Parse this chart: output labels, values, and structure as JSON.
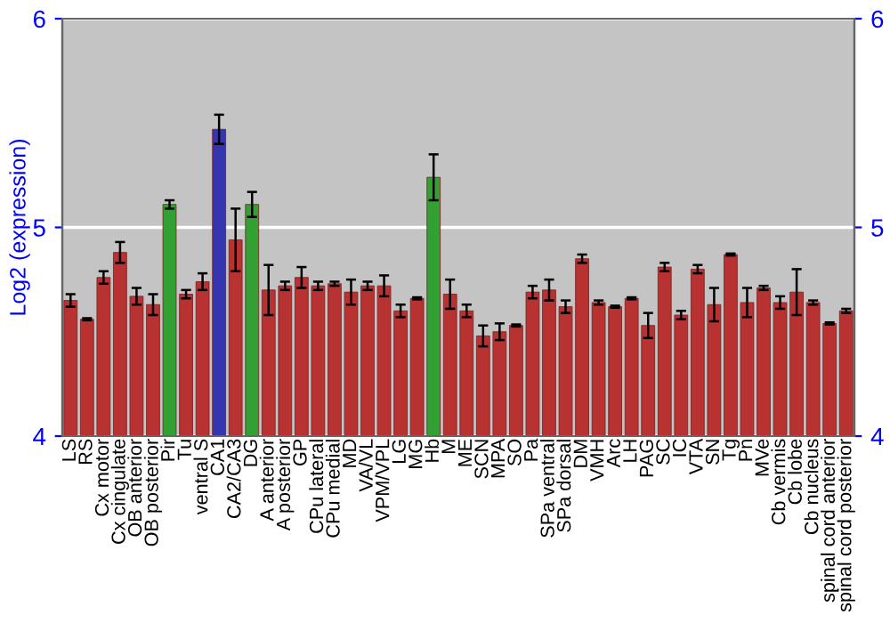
{
  "chart_data": {
    "type": "bar",
    "ylabel": "Log2 (expression)",
    "categories": [
      "LS",
      "RS",
      "Cx motor",
      "Cx cingulate",
      "OB anterior",
      "OB posterior",
      "Pir",
      "Tu",
      "ventral S",
      "CA1",
      "CA2/CA3",
      "DG",
      "A anterior",
      "A posterior",
      "GP",
      "CPu lateral",
      "CPu medial",
      "MD",
      "VA/VL",
      "VPM/VPL",
      "LG",
      "MG",
      "Hb",
      "M",
      "ME",
      "SCN",
      "MPA",
      "SO",
      "Pa",
      "SPa ventral",
      "SPa dorsal",
      "DM",
      "VMH",
      "Arc",
      "LH",
      "PAG",
      "SC",
      "IC",
      "VTA",
      "SN",
      "Tg",
      "Pn",
      "MVe",
      "Cb vermis",
      "Cb lobe",
      "Cb nucleus",
      "spinal cord anterior",
      "spinal cord posterior"
    ],
    "values": [
      4.65,
      4.56,
      4.76,
      4.88,
      4.67,
      4.63,
      5.11,
      4.68,
      4.74,
      5.47,
      4.94,
      5.11,
      4.7,
      4.72,
      4.76,
      4.72,
      4.73,
      4.69,
      4.72,
      4.72,
      4.6,
      4.66,
      5.24,
      4.68,
      4.6,
      4.48,
      4.5,
      4.53,
      4.69,
      4.7,
      4.62,
      4.85,
      4.64,
      4.62,
      4.66,
      4.53,
      4.81,
      4.58,
      4.8,
      4.63,
      4.87,
      4.64,
      4.71,
      4.64,
      4.69,
      4.64,
      4.54,
      4.6
    ],
    "errors": [
      0.03,
      0.005,
      0.03,
      0.05,
      0.04,
      0.05,
      0.02,
      0.02,
      0.04,
      0.07,
      0.15,
      0.06,
      0.12,
      0.02,
      0.05,
      0.02,
      0.01,
      0.06,
      0.02,
      0.05,
      0.03,
      0.005,
      0.11,
      0.07,
      0.03,
      0.05,
      0.04,
      0.005,
      0.03,
      0.05,
      0.03,
      0.02,
      0.01,
      0.005,
      0.005,
      0.06,
      0.02,
      0.02,
      0.02,
      0.08,
      0.005,
      0.07,
      0.01,
      0.03,
      0.11,
      0.01,
      0.005,
      0.01
    ],
    "colors": [
      "#b83232",
      "#b83232",
      "#b83232",
      "#b83232",
      "#b83232",
      "#b83232",
      "#33a033",
      "#b83232",
      "#b83232",
      "#3535b0",
      "#b83232",
      "#33a033",
      "#b83232",
      "#b83232",
      "#b83232",
      "#b83232",
      "#b83232",
      "#b83232",
      "#b83232",
      "#b83232",
      "#b83232",
      "#b83232",
      "#33a033",
      "#b83232",
      "#b83232",
      "#b83232",
      "#b83232",
      "#b83232",
      "#b83232",
      "#b83232",
      "#b83232",
      "#b83232",
      "#b83232",
      "#b83232",
      "#b83232",
      "#b83232",
      "#b83232",
      "#b83232",
      "#b83232",
      "#b83232",
      "#b83232",
      "#b83232",
      "#b83232",
      "#b83232",
      "#b83232",
      "#b83232",
      "#b83232",
      "#b83232"
    ],
    "ylim": [
      4,
      6
    ],
    "yticks": [
      4,
      5,
      6
    ],
    "y2lim": [
      4,
      6
    ],
    "y2ticks": [
      4,
      5,
      6
    ],
    "grid": "y"
  }
}
